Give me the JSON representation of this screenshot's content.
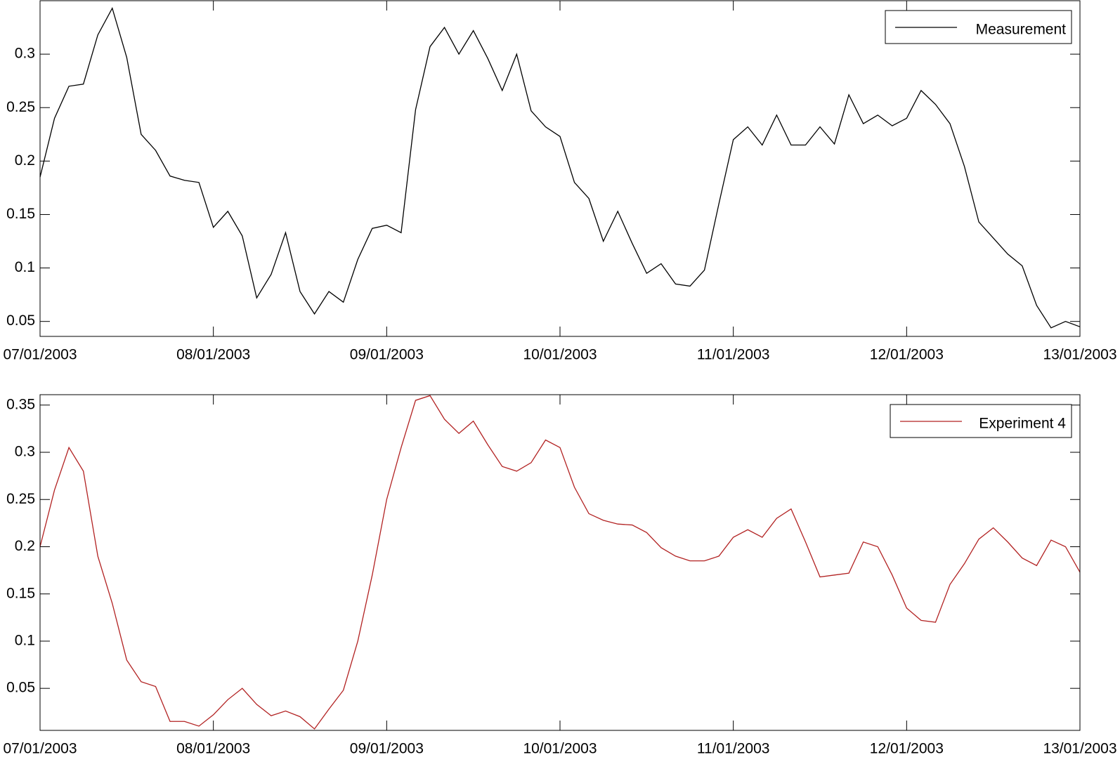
{
  "chart_data": [
    {
      "type": "line",
      "series": [
        {
          "name": "Measurement",
          "color": "#000000",
          "values": [
            0.185,
            0.24,
            0.27,
            0.272,
            0.318,
            0.343,
            0.297,
            0.225,
            0.21,
            0.186,
            0.182,
            0.18,
            0.138,
            0.153,
            0.13,
            0.072,
            0.094,
            0.133,
            0.078,
            0.057,
            0.078,
            0.068,
            0.108,
            0.137,
            0.14,
            0.133,
            0.248,
            0.307,
            0.325,
            0.3,
            0.322,
            0.296,
            0.266,
            0.3,
            0.247,
            0.232,
            0.223,
            0.18,
            0.165,
            0.125,
            0.153,
            0.123,
            0.095,
            0.104,
            0.085,
            0.083,
            0.098,
            0.16,
            0.22,
            0.232,
            0.215,
            0.243,
            0.215,
            0.215,
            0.232,
            0.216,
            0.262,
            0.235,
            0.243,
            0.233,
            0.24,
            0.266,
            0.253,
            0.235,
            0.195,
            0.143,
            0.128,
            0.113,
            0.102,
            0.065,
            0.044,
            0.05,
            0.045
          ]
        }
      ],
      "xlim": [
        0,
        72
      ],
      "xticks": [
        {
          "value": 0,
          "label": "07/01/2003"
        },
        {
          "value": 12,
          "label": "08/01/2003"
        },
        {
          "value": 24,
          "label": "09/01/2003"
        },
        {
          "value": 36,
          "label": "10/01/2003"
        },
        {
          "value": 48,
          "label": "11/01/2003"
        },
        {
          "value": 60,
          "label": "12/01/2003"
        },
        {
          "value": 72,
          "label": "13/01/2003"
        }
      ],
      "ylim": [
        0.036,
        0.35
      ],
      "yticks": [
        0.05,
        0.1,
        0.15,
        0.2,
        0.25,
        0.3
      ],
      "legend": "upper right"
    },
    {
      "type": "line",
      "series": [
        {
          "name": "Experiment 4",
          "color": "#b22222",
          "values": [
            0.2,
            0.26,
            0.305,
            0.28,
            0.19,
            0.14,
            0.08,
            0.057,
            0.052,
            0.015,
            0.015,
            0.01,
            0.022,
            0.038,
            0.05,
            0.033,
            0.021,
            0.026,
            0.02,
            0.007,
            0.028,
            0.048,
            0.1,
            0.17,
            0.25,
            0.305,
            0.355,
            0.36,
            0.335,
            0.32,
            0.333,
            0.308,
            0.285,
            0.28,
            0.289,
            0.313,
            0.305,
            0.263,
            0.235,
            0.228,
            0.224,
            0.223,
            0.215,
            0.199,
            0.19,
            0.185,
            0.185,
            0.19,
            0.21,
            0.218,
            0.21,
            0.23,
            0.24,
            0.205,
            0.168,
            0.17,
            0.172,
            0.205,
            0.2,
            0.17,
            0.135,
            0.122,
            0.12,
            0.16,
            0.182,
            0.208,
            0.22,
            0.205,
            0.188,
            0.18,
            0.207,
            0.2,
            0.173
          ]
        }
      ],
      "xlim": [
        0,
        72
      ],
      "xticks": [
        {
          "value": 0,
          "label": "07/01/2003"
        },
        {
          "value": 12,
          "label": "08/01/2003"
        },
        {
          "value": 24,
          "label": "09/01/2003"
        },
        {
          "value": 36,
          "label": "10/01/2003"
        },
        {
          "value": 48,
          "label": "11/01/2003"
        },
        {
          "value": 60,
          "label": "12/01/2003"
        },
        {
          "value": 72,
          "label": "13/01/2003"
        }
      ],
      "ylim": [
        0.0055,
        0.361
      ],
      "yticks": [
        0.05,
        0.1,
        0.15,
        0.2,
        0.25,
        0.3,
        0.35
      ],
      "legend": "upper right"
    }
  ]
}
